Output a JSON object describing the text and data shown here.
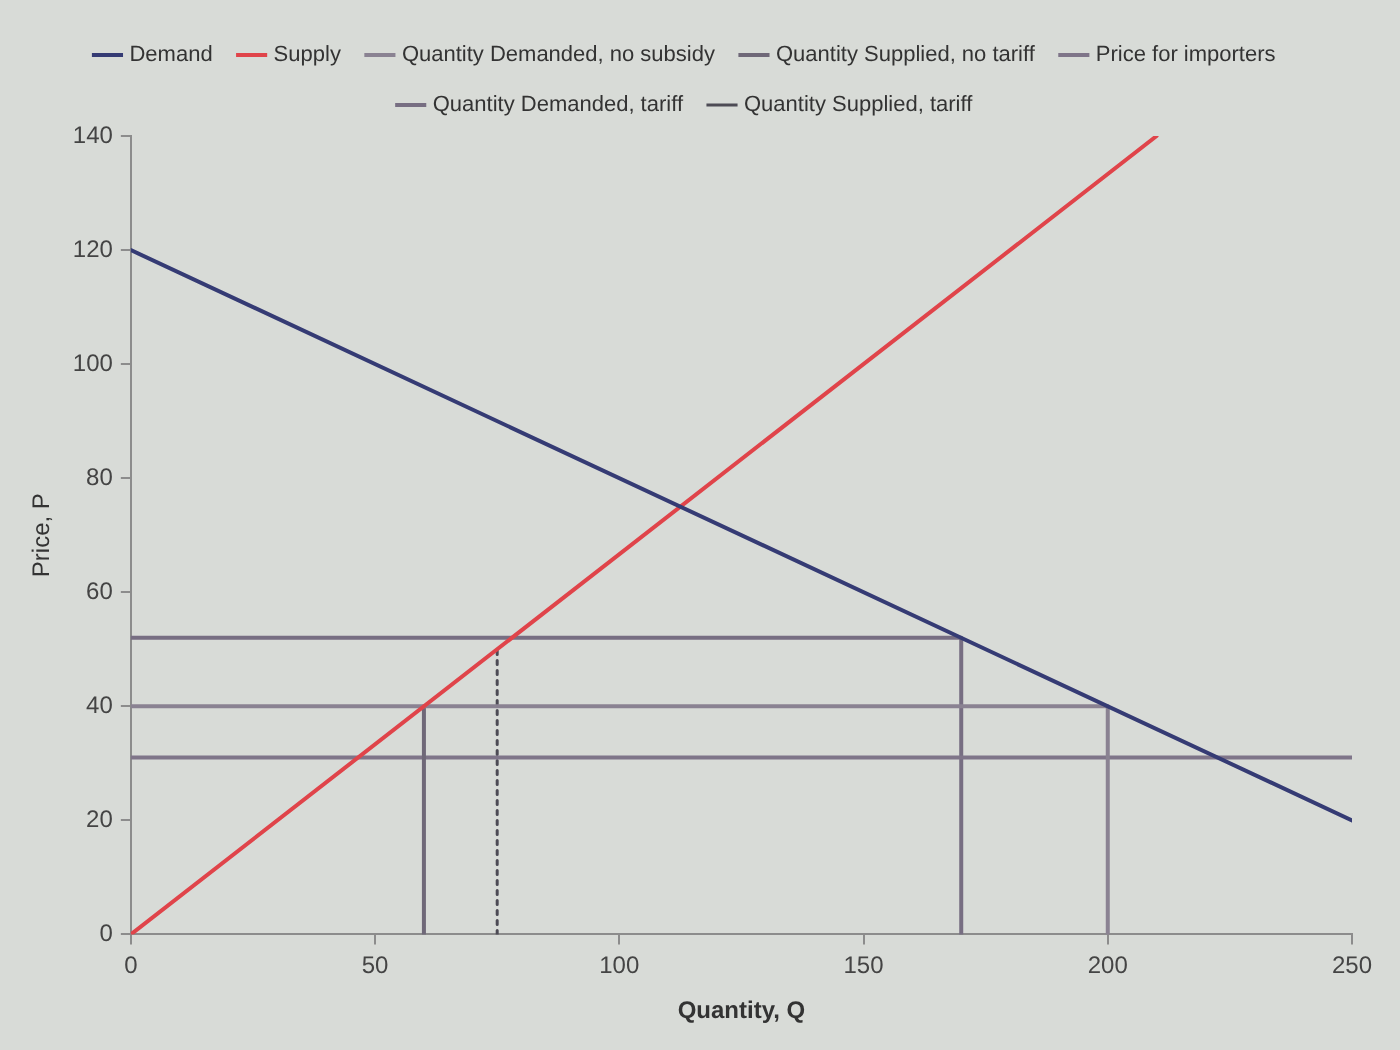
{
  "chart_data": {
    "type": "line",
    "xlabel": "Quantity, Q",
    "ylabel": "Price, P",
    "xlim": [
      0,
      250
    ],
    "xticks": [
      0,
      50,
      100,
      150,
      200,
      250
    ],
    "ylim": [
      0,
      140
    ],
    "yticks": [
      0,
      20,
      40,
      60,
      80,
      100,
      120,
      140
    ],
    "grid": false,
    "legend": "top",
    "marker": "none",
    "line_style": "solid",
    "series": [
      {
        "name": "Demand",
        "color": "#353b74",
        "x": [
          0,
          250
        ],
        "values": [
          120,
          20
        ]
      },
      {
        "name": "Supply",
        "color": "#e0444a",
        "x": [
          0,
          210
        ],
        "values": [
          0,
          140
        ]
      },
      {
        "name": "Quantity Demanded, no subsidy",
        "color": "#8a8292",
        "x": [
          0,
          200,
          200
        ],
        "values": [
          40,
          40,
          0
        ]
      },
      {
        "name": "Quantity Supplied, no tariff",
        "color": "#6f6878",
        "x": [
          60,
          60
        ],
        "values": [
          0,
          40
        ]
      },
      {
        "name": "Price for importers",
        "color": "#7f7589",
        "x": [
          0,
          250
        ],
        "values": [
          31,
          31
        ]
      },
      {
        "name": "Quantity Demanded, tariff",
        "color": "#776e82",
        "x": [
          0,
          170,
          170
        ],
        "values": [
          52,
          52,
          0
        ]
      },
      {
        "name": "Quantity Supplied, tariff",
        "color": "#4d4b55",
        "line_style": "dotted",
        "x": [
          75,
          75
        ],
        "values": [
          0,
          50
        ]
      }
    ]
  }
}
